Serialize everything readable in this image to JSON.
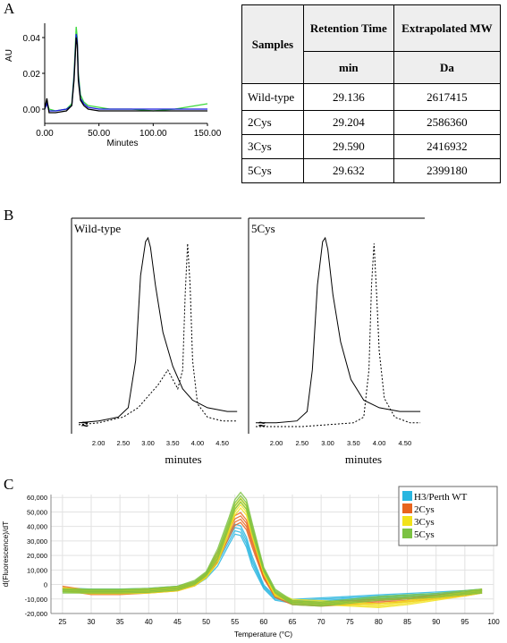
{
  "panels": {
    "a": "A",
    "b": "B",
    "c": "C"
  },
  "colors": {
    "green": "#3dd93d",
    "blue": "#1b1be0",
    "black": "#000000"
  },
  "table": {
    "header_samples": "Samples",
    "header_rt": "Retention Time",
    "header_mw": "Extrapolated MW",
    "unit_rt": "min",
    "unit_mw": "Da",
    "rows": [
      {
        "sample": "Wild-type",
        "rt": "29.136",
        "mw": "2617415"
      },
      {
        "sample": "2Cys",
        "rt": "29.204",
        "mw": "2586360"
      },
      {
        "sample": "3Cys",
        "rt": "29.590",
        "mw": "2416932"
      },
      {
        "sample": "5Cys",
        "rt": "29.632",
        "mw": "2399180"
      }
    ]
  },
  "chart_data": [
    {
      "type": "line",
      "panel": "A",
      "xlabel": "Minutes",
      "ylabel": "AU",
      "xlim": [
        0,
        150
      ],
      "ylim": [
        -0.008,
        0.048
      ],
      "xticks": [
        "0.00",
        "50.00",
        "100.00",
        "150.00"
      ],
      "yticks": [
        "0.00",
        "0.02",
        "0.04"
      ],
      "series": [
        {
          "color": "#3dd93d",
          "x": [
            0,
            2,
            4,
            10,
            20,
            25,
            27,
            29,
            30,
            31,
            33,
            36,
            40,
            50,
            60,
            80,
            100,
            120,
            140,
            150
          ],
          "y": [
            0.0,
            0.004,
            0.0,
            -0.001,
            0.0,
            0.003,
            0.02,
            0.046,
            0.04,
            0.02,
            0.008,
            0.004,
            0.002,
            0.001,
            0.0,
            0.0,
            -0.001,
            0.0,
            0.002,
            0.003
          ]
        },
        {
          "color": "#1b1be0",
          "x": [
            0,
            2,
            4,
            10,
            20,
            25,
            27,
            29,
            30,
            31,
            33,
            36,
            40,
            50,
            60,
            80,
            100,
            120,
            140,
            150
          ],
          "y": [
            0.0,
            0.003,
            -0.001,
            -0.001,
            0.0,
            0.002,
            0.018,
            0.042,
            0.038,
            0.018,
            0.006,
            0.003,
            0.001,
            0.0,
            0.0,
            0.0,
            0.0,
            0.0,
            0.0,
            0.0
          ]
        },
        {
          "color": "#000000",
          "x": [
            0,
            2,
            4,
            10,
            20,
            25,
            27,
            29,
            30,
            31,
            33,
            36,
            40,
            50,
            60,
            80,
            100,
            120,
            140,
            150
          ],
          "y": [
            0.0,
            0.006,
            -0.002,
            -0.002,
            -0.001,
            0.002,
            0.016,
            0.04,
            0.036,
            0.016,
            0.005,
            0.002,
            0.0,
            -0.001,
            -0.001,
            -0.001,
            -0.001,
            -0.001,
            -0.001,
            -0.001
          ]
        }
      ]
    },
    {
      "type": "line",
      "panel": "B-left",
      "title": "Wild-type",
      "xlabel": "minutes",
      "xlim": [
        1.6,
        4.85
      ],
      "ylim": [
        0,
        1
      ],
      "xticks": [
        "2.00",
        "2.50",
        "3.00",
        "3.50",
        "4.00",
        "4.50"
      ],
      "series": [
        {
          "style": "solid",
          "x": [
            1.6,
            2.0,
            2.4,
            2.6,
            2.75,
            2.85,
            2.95,
            3.0,
            3.05,
            3.15,
            3.3,
            3.5,
            3.7,
            3.9,
            4.2,
            4.6,
            4.8
          ],
          "y": [
            0.02,
            0.03,
            0.05,
            0.1,
            0.35,
            0.8,
            0.98,
            1.0,
            0.95,
            0.75,
            0.5,
            0.32,
            0.2,
            0.14,
            0.1,
            0.08,
            0.08
          ]
        },
        {
          "style": "dotted",
          "x": [
            1.6,
            2.0,
            2.5,
            2.8,
            3.0,
            3.2,
            3.4,
            3.5,
            3.6,
            3.7,
            3.75,
            3.8,
            3.85,
            3.9,
            4.0,
            4.2,
            4.5,
            4.8
          ],
          "y": [
            0.01,
            0.02,
            0.05,
            0.1,
            0.16,
            0.22,
            0.3,
            0.25,
            0.2,
            0.3,
            0.7,
            0.97,
            0.75,
            0.35,
            0.12,
            0.05,
            0.03,
            0.03
          ]
        }
      ]
    },
    {
      "type": "line",
      "panel": "B-right",
      "title": "5Cys",
      "xlabel": "minutes",
      "xlim": [
        1.6,
        4.85
      ],
      "ylim": [
        0,
        1
      ],
      "xticks": [
        "2.00",
        "2.50",
        "3.00",
        "3.50",
        "4.00",
        "4.50"
      ],
      "series": [
        {
          "style": "solid",
          "x": [
            1.6,
            2.0,
            2.4,
            2.6,
            2.7,
            2.8,
            2.9,
            2.95,
            3.0,
            3.1,
            3.25,
            3.45,
            3.7,
            4.0,
            4.4,
            4.8
          ],
          "y": [
            0.02,
            0.02,
            0.03,
            0.08,
            0.3,
            0.75,
            0.98,
            1.0,
            0.94,
            0.7,
            0.45,
            0.25,
            0.14,
            0.1,
            0.08,
            0.08
          ]
        },
        {
          "style": "dotted",
          "x": [
            1.6,
            2.0,
            2.5,
            3.0,
            3.5,
            3.7,
            3.8,
            3.85,
            3.9,
            3.95,
            4.0,
            4.1,
            4.3,
            4.6,
            4.8
          ],
          "y": [
            0.0,
            0.0,
            0.0,
            0.01,
            0.02,
            0.05,
            0.3,
            0.75,
            0.97,
            0.7,
            0.4,
            0.15,
            0.05,
            0.02,
            0.02
          ]
        }
      ]
    },
    {
      "type": "line",
      "panel": "C",
      "xlabel": "Temperature (°C)",
      "ylabel": "d(Fluorescence)/dT",
      "xlim": [
        23,
        100
      ],
      "ylim": [
        -20000,
        62000
      ],
      "xticks": [
        25,
        30,
        35,
        40,
        45,
        50,
        55,
        60,
        65,
        70,
        75,
        80,
        85,
        90,
        95,
        100
      ],
      "yticks": [
        "60,000",
        "50,000",
        "40,000",
        "30,000",
        "20,000",
        "10,000",
        "0",
        "-10,000",
        "-20,000"
      ],
      "grid": true,
      "legend": {
        "position": "top-right",
        "entries": [
          "H3/Perth WT",
          "2Cys",
          "3Cys",
          "5Cys"
        ]
      },
      "series": [
        {
          "name": "H3/Perth WT",
          "color": "#29b6e0",
          "x": [
            25,
            30,
            35,
            40,
            45,
            48,
            50,
            52,
            54,
            55,
            56,
            57,
            58,
            60,
            62,
            65,
            70,
            75,
            80,
            85,
            90,
            95,
            98
          ],
          "y": [
            -4000,
            -5000,
            -5000,
            -4500,
            -3000,
            0,
            5000,
            15000,
            30000,
            37000,
            36000,
            28000,
            15000,
            -2000,
            -10000,
            -12000,
            -11000,
            -10000,
            -9000,
            -8000,
            -7000,
            -6000,
            -5000
          ]
        },
        {
          "name": "2Cys",
          "color": "#e8641e",
          "x": [
            25,
            30,
            35,
            40,
            45,
            48,
            50,
            52,
            54,
            55,
            56,
            57,
            58,
            60,
            62,
            65,
            70,
            75,
            80,
            85,
            90,
            95,
            98
          ],
          "y": [
            -3000,
            -6000,
            -6000,
            -5000,
            -3500,
            0,
            6000,
            18000,
            35000,
            43000,
            45000,
            40000,
            28000,
            5000,
            -8000,
            -13000,
            -14000,
            -13000,
            -12000,
            -11000,
            -9000,
            -7000,
            -5000
          ]
        },
        {
          "name": "3Cys",
          "color": "#f2e21b",
          "x": [
            25,
            30,
            35,
            40,
            45,
            48,
            50,
            52,
            54,
            55,
            56,
            57,
            58,
            60,
            62,
            65,
            70,
            75,
            80,
            85,
            90,
            95,
            98
          ],
          "y": [
            -4000,
            -5500,
            -5500,
            -5000,
            -3500,
            0,
            5500,
            17000,
            38000,
            50000,
            55000,
            50000,
            35000,
            8000,
            -7000,
            -12000,
            -13000,
            -14000,
            -15000,
            -13000,
            -10000,
            -7000,
            -5000
          ]
        },
        {
          "name": "5Cys",
          "color": "#7cc242",
          "x": [
            25,
            30,
            35,
            40,
            45,
            48,
            50,
            52,
            54,
            55,
            56,
            57,
            58,
            60,
            62,
            65,
            70,
            75,
            80,
            85,
            90,
            95,
            98
          ],
          "y": [
            -5000,
            -5000,
            -5000,
            -4500,
            -3000,
            1000,
            7000,
            20000,
            42000,
            54000,
            59000,
            54000,
            38000,
            10000,
            -5000,
            -13000,
            -14000,
            -12000,
            -10000,
            -9000,
            -8000,
            -6000,
            -5000
          ]
        }
      ]
    }
  ]
}
